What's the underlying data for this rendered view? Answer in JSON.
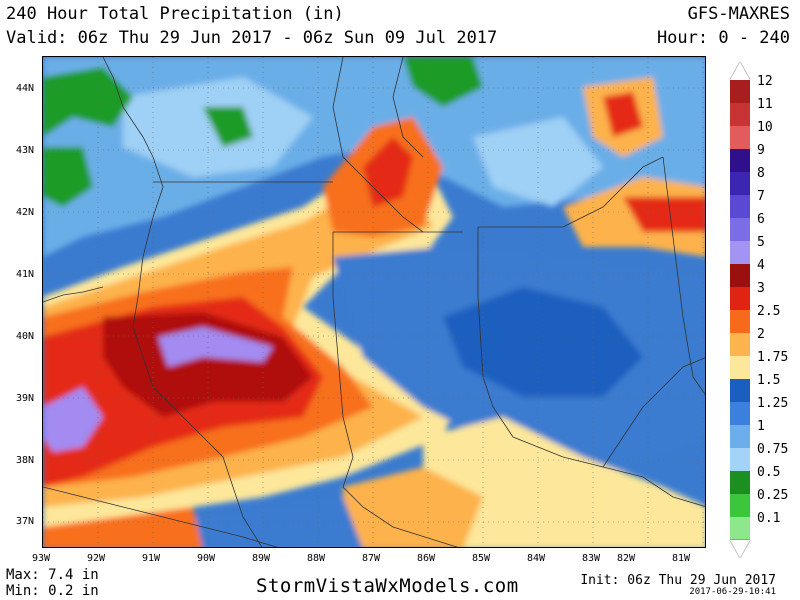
{
  "header": {
    "title": "240 Hour Total Precipitation (in)",
    "valid": "Valid: 06z Thu 29 Jun 2017 - 06z Sun 09 Jul 2017",
    "model": "GFS-MAXRES",
    "hour": "Hour: 0 - 240"
  },
  "map": {
    "lat_labels": [
      "44N",
      "43N",
      "42N",
      "41N",
      "40N",
      "39N",
      "38N",
      "37N"
    ],
    "lon_labels": [
      "93W",
      "92W",
      "91W",
      "90W",
      "89W",
      "88W",
      "87W",
      "86W",
      "85W",
      "84W",
      "83W",
      "82W",
      "81W"
    ],
    "colors": {
      "ocean_base": "#3a7bd0",
      "light_blue": "#6aaee8",
      "pale_blue": "#9fd0f5",
      "green": "#1f9b25",
      "yellow": "#fde79a",
      "orange_light": "#fdb24c",
      "orange": "#f8701c",
      "red": "#e42a17",
      "dark_red": "#b01010",
      "purple": "#a38bf2"
    }
  },
  "legend": {
    "items": [
      {
        "label": "12",
        "color": "#a81d1d"
      },
      {
        "label": "11",
        "color": "#c83434"
      },
      {
        "label": "10",
        "color": "#e25c5c"
      },
      {
        "label": "9",
        "color": "#300f8c"
      },
      {
        "label": "8",
        "color": "#3a26b0"
      },
      {
        "label": "7",
        "color": "#5a4ad3"
      },
      {
        "label": "6",
        "color": "#7a6de6"
      },
      {
        "label": "5",
        "color": "#a394f4"
      },
      {
        "label": "4",
        "color": "#9a0f0f"
      },
      {
        "label": "3",
        "color": "#e02414"
      },
      {
        "label": "2.5",
        "color": "#f76a1c"
      },
      {
        "label": "2",
        "color": "#fbb44e"
      },
      {
        "label": "1.75",
        "color": "#fde79a"
      },
      {
        "label": "1.5",
        "color": "#1a5fbf"
      },
      {
        "label": "1.25",
        "color": "#3a80dc"
      },
      {
        "label": "1",
        "color": "#6cadec"
      },
      {
        "label": "0.75",
        "color": "#a3d3f6"
      },
      {
        "label": "0.5",
        "color": "#1b8f20"
      },
      {
        "label": "0.25",
        "color": "#3cc63c"
      },
      {
        "label": "0.1",
        "color": "#8ce88a"
      }
    ]
  },
  "footer": {
    "max": "Max: 7.4 in",
    "min": "Min: 0.2 in",
    "site": "StormVistaWxModels.com",
    "init": "Init: 06z Thu 29 Jun 2017",
    "timestamp": "2017-06-29-10:41"
  }
}
